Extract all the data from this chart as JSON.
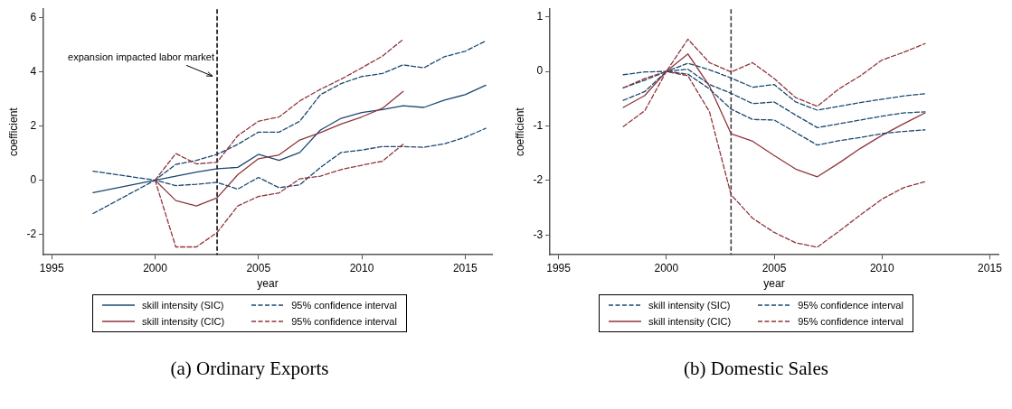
{
  "chart_data": [
    {
      "type": "line",
      "title": "(a) Ordinary Exports",
      "xlabel": "year",
      "ylabel": "coefficient",
      "xlim": [
        1994.6,
        2016.3
      ],
      "xticks": [
        1995,
        2000,
        2005,
        2010,
        2015
      ],
      "ylim": [
        -2.75,
        6.3
      ],
      "yticks": [
        -2,
        0,
        2,
        4,
        6
      ],
      "grid": false,
      "legend": "bottom",
      "ref_lines": [
        {
          "axis": "x",
          "value": 2003,
          "color": "#000000",
          "line_style": "dashed"
        }
      ],
      "annotations": [
        {
          "text": "expansion impacted labor market",
          "x": 2003,
          "y": 3.8
        }
      ],
      "series": [
        {
          "name": "skill intensity (SIC)",
          "color": "#1a476f",
          "line_style": "solid",
          "x": [
            1997,
            2000,
            2001,
            2002,
            2003,
            2004,
            2005,
            2006,
            2007,
            2008,
            2009,
            2010,
            2011,
            2012,
            2013,
            2014,
            2015,
            2016
          ],
          "values": [
            -0.46,
            0,
            0.15,
            0.3,
            0.42,
            0.47,
            0.95,
            0.73,
            1.02,
            1.85,
            2.28,
            2.49,
            2.6,
            2.74,
            2.68,
            2.95,
            3.15,
            3.5
          ]
        },
        {
          "name": "95% confidence interval",
          "color": "#1a476f",
          "line_style": "dashed",
          "x": [
            1997,
            2000,
            2001,
            2002,
            2003,
            2004,
            2005,
            2006,
            2007,
            2008,
            2009,
            2010,
            2011,
            2012,
            2013,
            2014,
            2015,
            2016
          ],
          "values": [
            0.33,
            0,
            0.58,
            0.73,
            0.95,
            1.32,
            1.77,
            1.77,
            2.17,
            3.15,
            3.56,
            3.82,
            3.93,
            4.25,
            4.14,
            4.55,
            4.75,
            5.13
          ]
        },
        {
          "name": "skill intensity (CIC)",
          "color": "#90353b",
          "line_style": "solid",
          "x": [
            2000,
            2001,
            2002,
            2003,
            2004,
            2005,
            2006,
            2007,
            2008,
            2009,
            2010,
            2011,
            2012
          ],
          "values": [
            0,
            -0.75,
            -0.95,
            -0.65,
            0.2,
            0.79,
            0.93,
            1.48,
            1.75,
            2.07,
            2.33,
            2.65,
            3.27
          ]
        },
        {
          "name": "95% confidence interval",
          "color": "#90353b",
          "line_style": "dashed",
          "x": [
            2000,
            2001,
            2002,
            2003,
            2004,
            2005,
            2006,
            2007,
            2008,
            2009,
            2010,
            2011,
            2012
          ],
          "values": [
            0,
            0.98,
            0.6,
            0.66,
            1.64,
            2.17,
            2.33,
            2.92,
            3.35,
            3.72,
            4.14,
            4.57,
            5.19
          ]
        },
        {
          "color": "#1a476f",
          "line_style": "dashed",
          "x": [
            1997,
            2000,
            2001,
            2002,
            2003,
            2004,
            2005,
            2006,
            2007,
            2008,
            2009,
            2010,
            2011,
            2012,
            2013,
            2014,
            2015,
            2016
          ],
          "values": [
            -1.23,
            0,
            -0.2,
            -0.15,
            -0.08,
            -0.33,
            0.1,
            -0.28,
            -0.17,
            0.47,
            1.02,
            1.11,
            1.24,
            1.24,
            1.21,
            1.34,
            1.58,
            1.91
          ]
        },
        {
          "color": "#90353b",
          "line_style": "dashed",
          "x": [
            2000,
            2001,
            2002,
            2003,
            2004,
            2005,
            2006,
            2007,
            2008,
            2009,
            2010,
            2011,
            2012
          ],
          "values": [
            0,
            -2.46,
            -2.46,
            -1.93,
            -0.95,
            -0.6,
            -0.47,
            0.05,
            0.15,
            0.39,
            0.55,
            0.7,
            1.32
          ]
        }
      ]
    },
    {
      "type": "line",
      "title": "(b) Domestic Sales",
      "xlabel": "year",
      "ylabel": "coefficient",
      "xlim": [
        1994.6,
        2015.4
      ],
      "xticks": [
        1995,
        2000,
        2005,
        2010,
        2015
      ],
      "ylim": [
        -3.36,
        1.14
      ],
      "yticks": [
        -3,
        -2,
        -1,
        0,
        1
      ],
      "grid": false,
      "legend": "bottom",
      "ref_lines": [
        {
          "axis": "x",
          "value": 2003,
          "color": "#333333",
          "line_style": "dashed"
        }
      ],
      "series": [
        {
          "name": "skill intensity (SIC)",
          "color": "#1a476f",
          "line_style": "dashed",
          "x": [
            1998,
            1999,
            2000,
            2001,
            2002,
            2003,
            2004,
            2005,
            2006,
            2007,
            2008,
            2009,
            2010,
            2011,
            2012
          ],
          "values": [
            -0.3,
            -0.16,
            0,
            0.04,
            -0.24,
            -0.4,
            -0.59,
            -0.56,
            -0.8,
            -1.03,
            -0.96,
            -0.89,
            -0.82,
            -0.76,
            -0.74
          ]
        },
        {
          "name": "95% confidence interval",
          "color": "#1a476f",
          "line_style": "dashed",
          "x": [
            1998,
            1999,
            2000,
            2001,
            2002,
            2003,
            2004,
            2005,
            2006,
            2007,
            2008,
            2009,
            2010,
            2011,
            2012
          ],
          "values": [
            -0.06,
            -0.01,
            0,
            0.15,
            0.03,
            -0.12,
            -0.29,
            -0.24,
            -0.56,
            -0.71,
            -0.64,
            -0.57,
            -0.51,
            -0.45,
            -0.41
          ]
        },
        {
          "name": "skill intensity (CIC)",
          "color": "#90353b",
          "line_style": "solid",
          "x": [
            1998,
            1999,
            2000,
            2001,
            2002,
            2003,
            2004,
            2005,
            2006,
            2007,
            2008,
            2009,
            2010,
            2011,
            2012
          ],
          "values": [
            -0.66,
            -0.44,
            0,
            0.32,
            -0.27,
            -1.14,
            -1.28,
            -1.54,
            -1.79,
            -1.93,
            -1.68,
            -1.41,
            -1.17,
            -0.96,
            -0.76
          ]
        },
        {
          "name": "95% confidence interval",
          "color": "#90353b",
          "line_style": "dashed",
          "x": [
            1998,
            1999,
            2000,
            2001,
            2002,
            2003,
            2004,
            2005,
            2006,
            2007,
            2008,
            2009,
            2010,
            2011,
            2012
          ],
          "values": [
            -0.3,
            -0.13,
            0,
            0.59,
            0.16,
            -0.01,
            0.16,
            -0.13,
            -0.48,
            -0.64,
            -0.32,
            -0.08,
            0.21,
            0.35,
            0.51
          ]
        },
        {
          "color": "#1a476f",
          "line_style": "dashed",
          "x": [
            1998,
            1999,
            2000,
            2001,
            2002,
            2003,
            2004,
            2005,
            2006,
            2007,
            2008,
            2009,
            2010,
            2011,
            2012
          ],
          "values": [
            -0.53,
            -0.37,
            0,
            -0.05,
            -0.32,
            -0.69,
            -0.88,
            -0.89,
            -1.12,
            -1.35,
            -1.27,
            -1.21,
            -1.14,
            -1.1,
            -1.07
          ]
        },
        {
          "color": "#90353b",
          "line_style": "dashed",
          "x": [
            1998,
            1999,
            2000,
            2001,
            2002,
            2003,
            2004,
            2005,
            2006,
            2007,
            2008,
            2009,
            2010,
            2011,
            2012
          ],
          "values": [
            -1.01,
            -0.72,
            0,
            -0.08,
            -0.74,
            -2.26,
            -2.69,
            -2.95,
            -3.14,
            -3.22,
            -2.93,
            -2.63,
            -2.34,
            -2.13,
            -2.02
          ]
        }
      ]
    }
  ]
}
